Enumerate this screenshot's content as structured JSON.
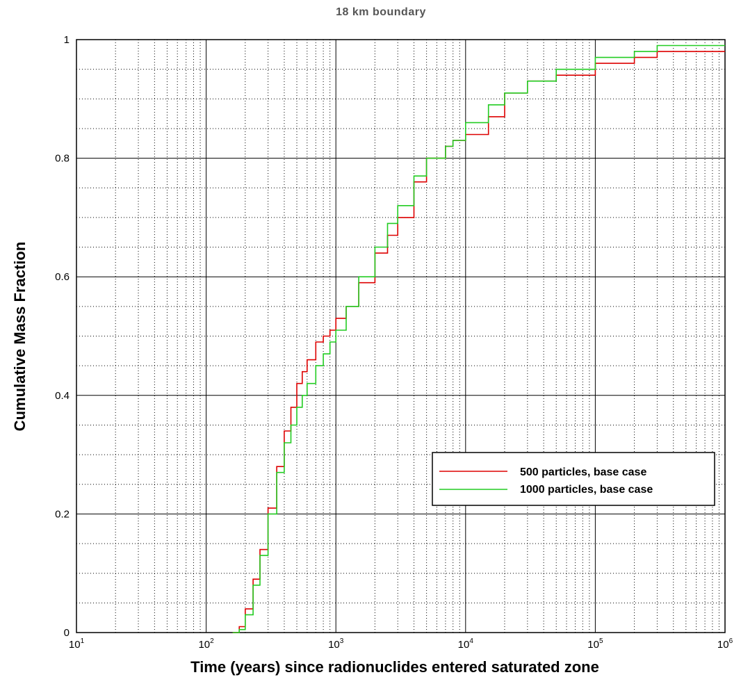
{
  "chart_data": {
    "type": "line",
    "title": "18 km boundary",
    "xlabel": "Time (years) since radionuclides entered saturated zone",
    "ylabel": "Cumulative Mass Fraction",
    "xscale": "log",
    "xlim": [
      10,
      1000000
    ],
    "ylim": [
      0,
      1
    ],
    "grid": true,
    "legend_position": "right",
    "x_ticks": [
      {
        "base": "10",
        "exp": "1"
      },
      {
        "base": "10",
        "exp": "2"
      },
      {
        "base": "10",
        "exp": "3"
      },
      {
        "base": "10",
        "exp": "4"
      },
      {
        "base": "10",
        "exp": "5"
      },
      {
        "base": "10",
        "exp": "6"
      }
    ],
    "y_ticks": [
      "0",
      "0.2",
      "0.4",
      "0.6",
      "0.8",
      "1"
    ],
    "series": [
      {
        "name": "500 particles, base case",
        "color": "#dd0000",
        "x": [
          160,
          180,
          200,
          230,
          260,
          300,
          350,
          400,
          450,
          500,
          550,
          600,
          700,
          800,
          900,
          1000,
          1200,
          1500,
          2000,
          2500,
          3000,
          4000,
          5000,
          7000,
          8000,
          10000,
          15000,
          20000,
          30000,
          50000,
          100000,
          200000,
          300000,
          1000000
        ],
        "y": [
          0,
          0.01,
          0.04,
          0.09,
          0.14,
          0.21,
          0.28,
          0.34,
          0.38,
          0.42,
          0.44,
          0.46,
          0.49,
          0.5,
          0.51,
          0.53,
          0.55,
          0.59,
          0.64,
          0.67,
          0.7,
          0.76,
          0.8,
          0.82,
          0.83,
          0.84,
          0.87,
          0.91,
          0.93,
          0.94,
          0.96,
          0.97,
          0.98,
          0.98
        ]
      },
      {
        "name": "1000 particles, base case",
        "color": "#22cc22",
        "x": [
          160,
          180,
          200,
          230,
          260,
          300,
          350,
          400,
          450,
          500,
          550,
          600,
          700,
          800,
          900,
          1000,
          1200,
          1500,
          2000,
          2500,
          3000,
          4000,
          5000,
          7000,
          8000,
          10000,
          15000,
          20000,
          30000,
          50000,
          100000,
          200000,
          300000,
          1000000
        ],
        "y": [
          0,
          0.005,
          0.03,
          0.08,
          0.13,
          0.2,
          0.27,
          0.32,
          0.35,
          0.38,
          0.4,
          0.42,
          0.45,
          0.47,
          0.49,
          0.51,
          0.55,
          0.6,
          0.65,
          0.69,
          0.72,
          0.77,
          0.8,
          0.82,
          0.83,
          0.86,
          0.89,
          0.91,
          0.93,
          0.95,
          0.97,
          0.98,
          0.99,
          0.99
        ]
      }
    ]
  }
}
